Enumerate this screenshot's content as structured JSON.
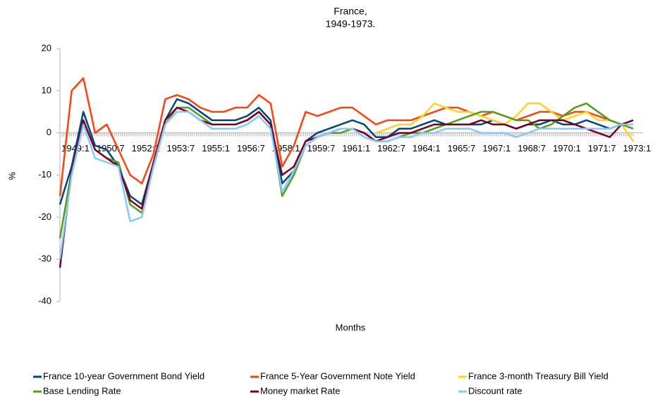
{
  "chart_data": {
    "type": "line",
    "title": "France,",
    "subtitle": "1949-1973.",
    "x_label": "Months",
    "y_label": "%",
    "categories": [
      "1949:1",
      null,
      null,
      "1950:7",
      null,
      null,
      "1952:1",
      null,
      null,
      "1953:7",
      null,
      null,
      "1955:1",
      null,
      null,
      "1956:7",
      null,
      null,
      "1958:1",
      null,
      null,
      "1959:7",
      null,
      null,
      "1961:1",
      null,
      null,
      "1962:7",
      null,
      null,
      "1964:1",
      null,
      null,
      "1965:7",
      null,
      null,
      "1967:1",
      null,
      null,
      "1968:7",
      null,
      null,
      "1970:1",
      null,
      null,
      "1971:7",
      null,
      null,
      "1973:1",
      null
    ],
    "ylim": [
      -40,
      20
    ],
    "yticks": [
      -40,
      -30,
      -20,
      -10,
      0,
      10,
      20
    ],
    "grid": false,
    "legend": "bottom",
    "series": [
      {
        "name": "France 10-year Government Bond Yield",
        "color": "#004586",
        "values": [
          -17,
          -8,
          5,
          -3,
          -4,
          -8,
          -15,
          -17,
          -7,
          3,
          8,
          7,
          5,
          3,
          3,
          3,
          4,
          6,
          3,
          -12,
          -9,
          -2,
          0,
          1,
          2,
          3,
          2,
          -1,
          -1,
          1,
          1,
          2,
          3,
          2,
          2,
          2,
          2,
          3,
          2,
          1,
          2,
          2,
          3,
          2,
          2,
          3,
          2,
          1,
          2,
          2
        ]
      },
      {
        "name": "France 5-Year Government Note Yield",
        "color": "#ff420e",
        "values": [
          -15,
          10,
          13,
          0,
          2,
          -4,
          -10,
          -12,
          -5,
          8,
          9,
          8,
          6,
          5,
          5,
          6,
          6,
          9,
          7,
          -8,
          -3,
          5,
          4,
          5,
          6,
          6,
          4,
          2,
          3,
          3,
          3,
          4,
          5,
          6,
          6,
          5,
          4,
          5,
          4,
          3,
          4,
          5,
          5,
          4,
          5,
          5,
          4,
          3,
          2,
          2
        ]
      },
      {
        "name": "France 3-month Treasury Bill Yield",
        "color": "#ffd320",
        "values": [
          null,
          null,
          null,
          null,
          null,
          null,
          null,
          null,
          null,
          null,
          null,
          null,
          null,
          null,
          null,
          null,
          null,
          null,
          null,
          null,
          null,
          null,
          null,
          null,
          null,
          null,
          null,
          0,
          1,
          2,
          2,
          4,
          7,
          6,
          5,
          5,
          4,
          3,
          2,
          4,
          7,
          7,
          5,
          3,
          4,
          5,
          3,
          3,
          2,
          -2
        ]
      },
      {
        "name": "Base Lending Rate",
        "color": "#579d1c",
        "values": [
          -25,
          -9,
          3,
          -4,
          -6,
          -7,
          -17,
          -19,
          -8,
          2,
          6,
          6,
          4,
          2,
          2,
          2,
          3,
          5,
          2,
          -15,
          -10,
          -3,
          -1,
          0,
          0,
          1,
          0,
          -2,
          -2,
          -1,
          0,
          0,
          1,
          2,
          3,
          4,
          5,
          5,
          4,
          3,
          3,
          1,
          2,
          4,
          6,
          7,
          5,
          3,
          2,
          1
        ]
      },
      {
        "name": "Money market Rate",
        "color": "#7e0021",
        "values": [
          -32,
          -9,
          3,
          -4,
          -6,
          -8,
          -16,
          -18,
          -7,
          3,
          6,
          5,
          3,
          2,
          2,
          2,
          3,
          5,
          2,
          -10,
          -8,
          -2,
          -1,
          0,
          1,
          1,
          0,
          -2,
          -1,
          0,
          0,
          1,
          2,
          2,
          2,
          2,
          3,
          2,
          2,
          1,
          2,
          3,
          3,
          3,
          2,
          1,
          0,
          -1,
          2,
          3
        ]
      },
      {
        "name": "Discount rate",
        "color": "#83caff",
        "values": [
          -30,
          -10,
          2,
          -6,
          -7,
          -8,
          -21,
          -20,
          -8,
          2,
          5,
          5,
          3,
          1,
          1,
          1,
          2,
          4,
          1,
          -14,
          -9,
          -3,
          -1,
          0,
          1,
          1,
          -1,
          -2,
          -2,
          -1,
          -1,
          0,
          0,
          1,
          1,
          1,
          0,
          0,
          0,
          -1,
          0,
          1,
          1,
          1,
          1,
          1,
          1,
          1,
          2,
          2
        ]
      }
    ]
  }
}
